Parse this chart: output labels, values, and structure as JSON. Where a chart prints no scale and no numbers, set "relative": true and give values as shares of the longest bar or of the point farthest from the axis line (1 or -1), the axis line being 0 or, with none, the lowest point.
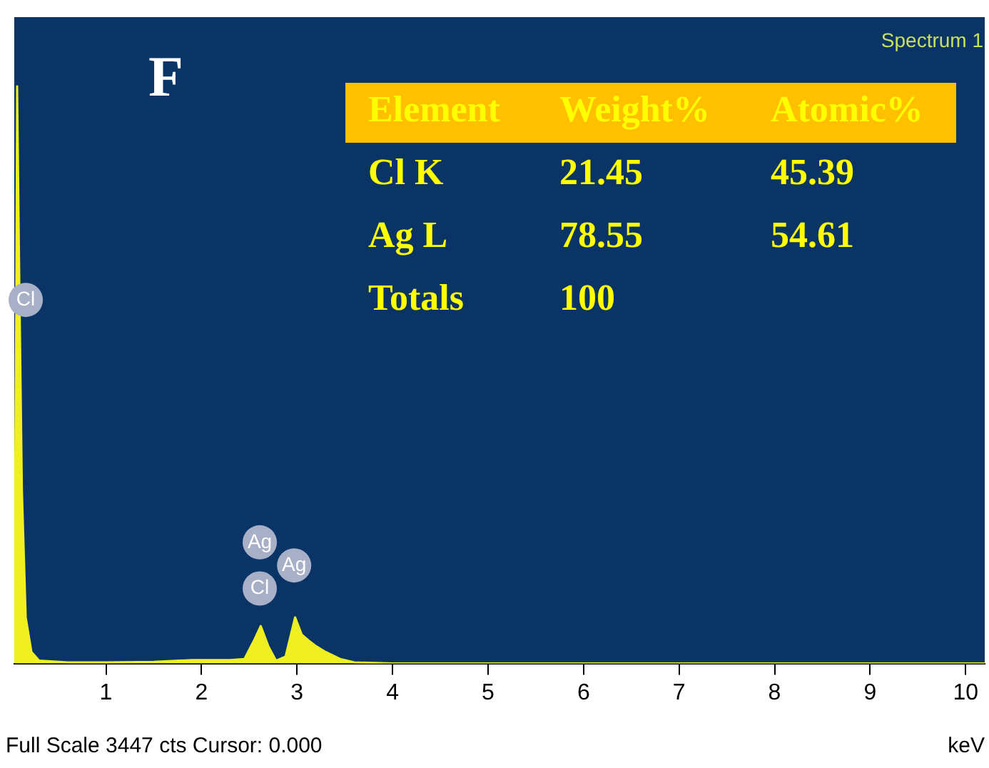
{
  "chart_data": {
    "type": "area",
    "title": "F",
    "xlabel": "keV",
    "relative": true,
    "color": "#f0f020",
    "x": [
      0.04,
      0.06,
      0.07,
      0.09,
      0.12,
      0.16,
      0.22,
      0.3,
      0.6,
      1.0,
      1.5,
      1.9,
      2.1,
      2.3,
      2.45,
      2.55,
      2.62,
      2.7,
      2.78,
      2.88,
      2.98,
      3.05,
      3.12,
      3.2,
      3.3,
      3.45,
      3.6,
      4.0,
      6.0,
      8.0,
      10.2
    ],
    "values": [
      0.05,
      0.6,
      1,
      0.7,
      0.3,
      0.08,
      0.02,
      0.005,
      0.002,
      0.002,
      0.003,
      0.006,
      0.006,
      0.006,
      0.008,
      0.04,
      0.065,
      0.03,
      0.005,
      0.012,
      0.08,
      0.05,
      0.04,
      0.03,
      0.02,
      0.008,
      0.002,
      0,
      0,
      0,
      0
    ],
    "xlim": [
      0.04,
      10.2
    ],
    "xticks": [
      1,
      2,
      3,
      4,
      5,
      6,
      7,
      8,
      9,
      10
    ],
    "legend": false,
    "annotations": [
      "Spectrum 1",
      "Full Scale 3447 cts Cursor: 0.000",
      "Element",
      "Weight%",
      "Atomic%",
      "Cl K",
      "21.45",
      "45.39",
      "Ag L",
      "78.55",
      "54.61",
      "Totals",
      "100",
      {
        "text": "Cl",
        "x": 0.16,
        "y": 0.63
      },
      {
        "text": "Ag",
        "x": 2.61,
        "y": 0.21
      },
      {
        "text": "Cl",
        "x": 2.61,
        "y": 0.13
      },
      {
        "text": "Ag",
        "x": 2.97,
        "y": 0.17
      }
    ]
  }
}
